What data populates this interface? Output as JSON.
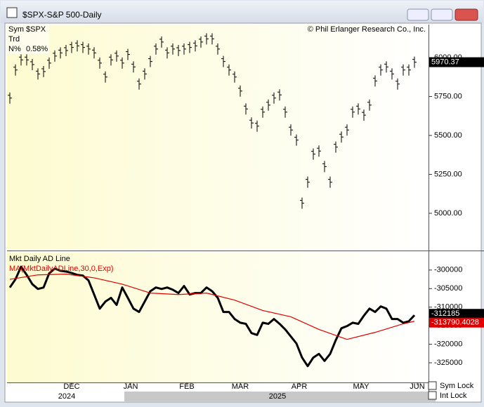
{
  "window": {
    "title": "$SPX-S&P 500-Daily"
  },
  "info": {
    "sym_label": "Sym",
    "sym": "$SPX",
    "trd_label": "Trd",
    "n_label": "N%",
    "n_value": "0.58%",
    "copyright": "© Phil Erlanger Research Co., Inc."
  },
  "years": [
    "2024",
    "2025"
  ],
  "checkboxes": [
    "Sym Lock",
    "Int Lock"
  ],
  "chart_data": [
    {
      "type": "price-bars",
      "color": "#000000",
      "x": [
        0,
        1,
        2,
        3,
        4,
        5,
        6,
        7,
        8,
        9,
        10,
        11,
        12,
        13,
        14,
        15,
        16,
        17,
        18,
        19,
        20,
        21,
        22,
        23,
        24,
        25,
        26,
        27,
        28,
        29,
        30,
        31,
        32,
        33,
        34,
        35,
        36,
        37,
        38,
        39,
        40,
        41,
        42,
        43,
        44,
        45,
        46,
        47,
        48,
        49,
        50,
        51,
        52,
        53,
        54,
        55,
        56,
        57,
        58,
        59,
        60,
        61,
        62,
        63,
        64,
        65,
        66,
        67,
        68,
        69,
        70,
        71,
        72
      ],
      "values": [
        5740,
        5920,
        5985,
        5985,
        5955,
        5895,
        5910,
        5965,
        6010,
        6030,
        6045,
        6065,
        6075,
        6065,
        6055,
        6030,
        5965,
        5875,
        5985,
        6010,
        5965,
        6020,
        5940,
        5830,
        5895,
        5975,
        6055,
        6100,
        6030,
        6055,
        6045,
        6055,
        6065,
        6075,
        6100,
        6120,
        6120,
        6055,
        5975,
        5920,
        5875,
        5785,
        5670,
        5580,
        5560,
        5650,
        5695,
        5740,
        5760,
        5650,
        5535,
        5470,
        5065,
        5200,
        5380,
        5400,
        5300,
        5200,
        5425,
        5490,
        5535,
        5650,
        5670,
        5630,
        5695,
        5850,
        5920,
        5940,
        5895,
        5830,
        5920,
        5920,
        5970.37
      ],
      "xlim": [
        -0.5,
        74.5
      ],
      "ylim": [
        4770,
        6212
      ],
      "yticks": [
        {
          "value": 5000,
          "label": "5000.00"
        },
        {
          "value": 5250,
          "label": "5250.00"
        },
        {
          "value": 5500,
          "label": "5500.00"
        },
        {
          "value": 5750,
          "label": "5750.00"
        },
        {
          "value": 6000,
          "label": "6000.00"
        }
      ]
    },
    {
      "type": "line",
      "x": [
        0,
        1,
        2,
        3,
        4,
        5,
        6,
        7,
        8,
        9,
        10,
        11,
        12,
        13,
        14,
        15,
        16,
        17,
        18,
        19,
        20,
        21,
        22,
        23,
        24,
        25,
        26,
        27,
        28,
        29,
        30,
        31,
        32,
        33,
        34,
        35,
        36,
        37,
        38,
        39,
        40,
        41,
        42,
        43,
        44,
        45,
        46,
        47,
        48,
        49,
        50,
        51,
        52,
        53,
        54,
        55,
        56,
        57,
        58,
        59,
        60,
        61,
        62,
        63,
        64,
        65,
        66,
        67,
        68,
        69,
        70,
        71,
        72
      ],
      "series": [
        {
          "name": "Mkt Daily AD Line",
          "color": "#000000",
          "values": [
            -304700,
            -302500,
            -299100,
            -301300,
            -303800,
            -305100,
            -304700,
            -300900,
            -299600,
            -300200,
            -300400,
            -300800,
            -301300,
            -301500,
            -302800,
            -306600,
            -310400,
            -308500,
            -307500,
            -309400,
            -304700,
            -307500,
            -310400,
            -311300,
            -308500,
            -305700,
            -304700,
            -305100,
            -304700,
            -305300,
            -306200,
            -304300,
            -306600,
            -306200,
            -306200,
            -304700,
            -305700,
            -307500,
            -311300,
            -311300,
            -313200,
            -314200,
            -314500,
            -317000,
            -317500,
            -314200,
            -314500,
            -313200,
            -314500,
            -316000,
            -317900,
            -319800,
            -323600,
            -325900,
            -323600,
            -322600,
            -324500,
            -322600,
            -318900,
            -315700,
            -315100,
            -314200,
            -314500,
            -312300,
            -310400,
            -311300,
            -309800,
            -310400,
            -313200,
            -313200,
            -314200,
            -313800,
            -312185
          ]
        },
        {
          "name": "MA(MktDailyADLine,30,0,Exp)",
          "color": "#e00000",
          "x": [
            0,
            5,
            10,
            15,
            20,
            25,
            30,
            35,
            40,
            45,
            50,
            55,
            60,
            65,
            70,
            72
          ],
          "values": [
            -302500,
            -301300,
            -301100,
            -302100,
            -303800,
            -306200,
            -306600,
            -306200,
            -308100,
            -310900,
            -312600,
            -316000,
            -318700,
            -316800,
            -314500,
            -313790.4028
          ]
        }
      ],
      "xlim": [
        -0.5,
        74.5
      ],
      "ylim": [
        -330300,
        -295300
      ],
      "yticks": [
        -325000,
        -320000,
        -315000,
        -310000,
        -305000,
        -300000
      ],
      "xticks": [
        {
          "value": 11,
          "label": "DEC"
        },
        {
          "value": 21.5,
          "label": "JAN"
        },
        {
          "value": 31.5,
          "label": "FEB"
        },
        {
          "value": 41,
          "label": "MAR"
        },
        {
          "value": 51.5,
          "label": "APR"
        },
        {
          "value": 62.5,
          "label": "MAY"
        },
        {
          "value": 72.5,
          "label": "JUN"
        }
      ]
    }
  ]
}
